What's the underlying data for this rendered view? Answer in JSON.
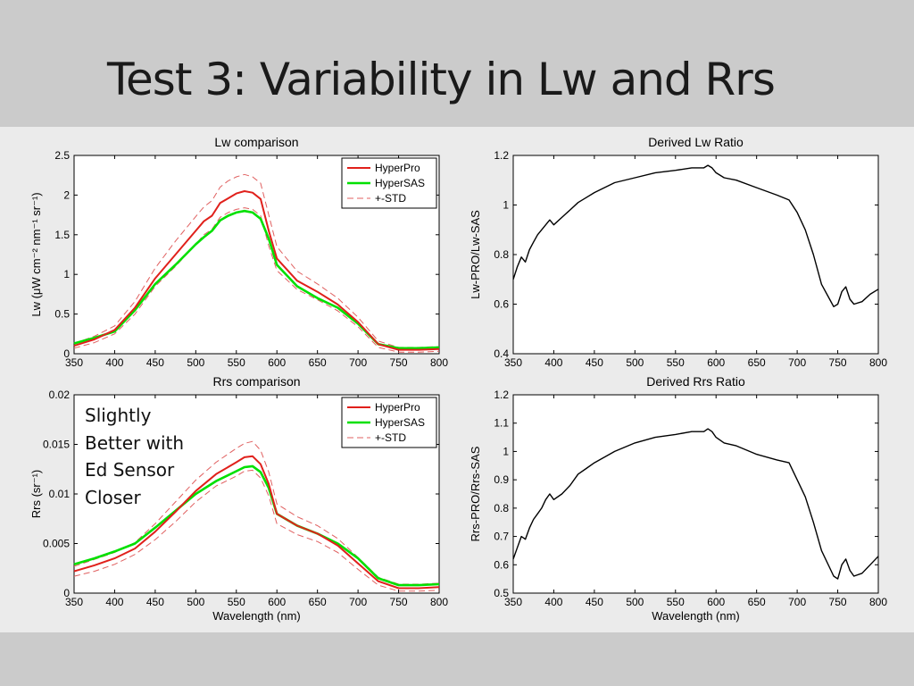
{
  "slide": {
    "title": "Test 3: Variability in Lw and Rrs",
    "note_lines": [
      "Slightly",
      "Better with",
      "Ed Sensor",
      "Closer"
    ]
  },
  "colors": {
    "hyperpro": "#e0201b",
    "hypersas": "#00e000",
    "std": "#e06060",
    "ratio": "#000000",
    "slide_bg": "#cbcbcb",
    "figure_bg": "#ebebeb"
  },
  "chart_data": [
    {
      "id": "lw",
      "type": "line",
      "title": "Lw comparison",
      "xlabel": "",
      "ylabel": "Lw (μW cm⁻² nm⁻¹ sr⁻¹)",
      "xlim": [
        350,
        800
      ],
      "ylim": [
        0,
        2.5
      ],
      "xticks": [
        "350",
        "400",
        "450",
        "500",
        "550",
        "600",
        "650",
        "700",
        "750",
        "800"
      ],
      "yticks": [
        "0",
        "0.5",
        "1",
        "1.5",
        "2",
        "2.5"
      ],
      "legend": {
        "position": "top-right",
        "entries": [
          "HyperPro",
          "HyperSAS",
          "+-STD"
        ]
      },
      "x": [
        350,
        375,
        400,
        425,
        450,
        475,
        500,
        510,
        520,
        530,
        540,
        550,
        560,
        570,
        580,
        590,
        600,
        625,
        650,
        675,
        700,
        725,
        750,
        775,
        800
      ],
      "series": [
        {
          "name": "HyperPro",
          "style": "solid",
          "color": "hyperpro",
          "values": [
            0.1,
            0.18,
            0.3,
            0.58,
            0.95,
            1.25,
            1.55,
            1.67,
            1.74,
            1.9,
            1.96,
            2.02,
            2.05,
            2.03,
            1.95,
            1.55,
            1.2,
            0.92,
            0.78,
            0.62,
            0.4,
            0.12,
            0.05,
            0.05,
            0.06
          ]
        },
        {
          "name": "HyperSAS",
          "style": "solid",
          "color": "hypersas",
          "values": [
            0.13,
            0.2,
            0.28,
            0.55,
            0.88,
            1.12,
            1.38,
            1.47,
            1.55,
            1.68,
            1.74,
            1.78,
            1.8,
            1.78,
            1.7,
            1.45,
            1.12,
            0.85,
            0.7,
            0.58,
            0.38,
            0.12,
            0.07,
            0.07,
            0.08
          ]
        },
        {
          "name": "+-STD upper",
          "style": "dashed",
          "color": "std",
          "values": [
            0.13,
            0.22,
            0.35,
            0.66,
            1.08,
            1.42,
            1.73,
            1.85,
            1.93,
            2.1,
            2.18,
            2.23,
            2.26,
            2.23,
            2.15,
            1.75,
            1.35,
            1.04,
            0.88,
            0.7,
            0.46,
            0.16,
            0.08,
            0.08,
            0.09
          ]
        },
        {
          "name": "+-STD lower",
          "style": "dashed",
          "color": "std",
          "values": [
            0.07,
            0.14,
            0.25,
            0.5,
            0.85,
            1.1,
            1.38,
            1.5,
            1.57,
            1.72,
            1.78,
            1.82,
            1.84,
            1.82,
            1.74,
            1.36,
            1.05,
            0.81,
            0.68,
            0.54,
            0.34,
            0.08,
            0.02,
            0.02,
            0.03
          ]
        }
      ]
    },
    {
      "id": "lw-ratio",
      "type": "line",
      "title": "Derived Lw Ratio",
      "xlabel": "",
      "ylabel": "Lw-PRO/Lw-SAS",
      "xlim": [
        350,
        800
      ],
      "ylim": [
        0.4,
        1.2
      ],
      "xticks": [
        "350",
        "400",
        "450",
        "500",
        "550",
        "600",
        "650",
        "700",
        "750",
        "800"
      ],
      "yticks": [
        "0.4",
        "0.6",
        "0.8",
        "1",
        "1.2"
      ],
      "x": [
        350,
        355,
        360,
        365,
        370,
        375,
        380,
        385,
        390,
        395,
        400,
        410,
        420,
        430,
        440,
        450,
        475,
        500,
        525,
        550,
        570,
        585,
        590,
        595,
        600,
        610,
        625,
        650,
        675,
        690,
        700,
        710,
        720,
        730,
        740,
        745,
        750,
        755,
        760,
        765,
        770,
        780,
        790,
        800
      ],
      "series": [
        {
          "name": "",
          "style": "solid",
          "color": "ratio",
          "values": [
            0.7,
            0.75,
            0.79,
            0.77,
            0.82,
            0.85,
            0.88,
            0.9,
            0.92,
            0.94,
            0.92,
            0.95,
            0.98,
            1.01,
            1.03,
            1.05,
            1.09,
            1.11,
            1.13,
            1.14,
            1.15,
            1.15,
            1.16,
            1.15,
            1.13,
            1.11,
            1.1,
            1.07,
            1.04,
            1.02,
            0.97,
            0.9,
            0.8,
            0.68,
            0.62,
            0.59,
            0.6,
            0.65,
            0.67,
            0.62,
            0.6,
            0.61,
            0.64,
            0.66
          ]
        }
      ]
    },
    {
      "id": "rrs",
      "type": "line",
      "title": "Rrs comparison",
      "xlabel": "Wavelength (nm)",
      "ylabel": "Rrs (sr⁻¹)",
      "xlim": [
        350,
        800
      ],
      "ylim": [
        0,
        0.02
      ],
      "xticks": [
        "350",
        "400",
        "450",
        "500",
        "550",
        "600",
        "650",
        "700",
        "750",
        "800"
      ],
      "yticks": [
        "0",
        "0.005",
        "0.01",
        "0.015",
        "0.02"
      ],
      "legend": {
        "position": "top-right",
        "entries": [
          "HyperPro",
          "HyperSAS",
          "+-STD"
        ]
      },
      "x": [
        350,
        375,
        400,
        425,
        450,
        475,
        500,
        525,
        550,
        560,
        570,
        580,
        590,
        600,
        625,
        650,
        675,
        700,
        725,
        750,
        775,
        800
      ],
      "series": [
        {
          "name": "HyperPro",
          "style": "solid",
          "color": "hyperpro",
          "values": [
            0.0022,
            0.0028,
            0.0035,
            0.0045,
            0.0062,
            0.0082,
            0.0103,
            0.012,
            0.0132,
            0.0137,
            0.0138,
            0.013,
            0.011,
            0.008,
            0.0068,
            0.006,
            0.0048,
            0.003,
            0.0012,
            0.0005,
            0.0005,
            0.0006
          ]
        },
        {
          "name": "HyperSAS",
          "style": "solid",
          "color": "hypersas",
          "values": [
            0.0029,
            0.0035,
            0.0042,
            0.005,
            0.0066,
            0.0083,
            0.01,
            0.0113,
            0.0123,
            0.0127,
            0.0128,
            0.0122,
            0.0106,
            0.008,
            0.0068,
            0.006,
            0.005,
            0.0035,
            0.0015,
            0.0008,
            0.0008,
            0.0009
          ]
        },
        {
          "name": "+-STD upper",
          "style": "dashed",
          "color": "std",
          "values": [
            0.0027,
            0.0034,
            0.0041,
            0.0051,
            0.007,
            0.0092,
            0.0114,
            0.0132,
            0.0146,
            0.0151,
            0.0153,
            0.0144,
            0.0122,
            0.009,
            0.0077,
            0.0068,
            0.0055,
            0.0036,
            0.0016,
            0.0009,
            0.0009,
            0.001
          ]
        },
        {
          "name": "+-STD lower",
          "style": "dashed",
          "color": "std",
          "values": [
            0.0017,
            0.0022,
            0.0029,
            0.0039,
            0.0054,
            0.0072,
            0.0092,
            0.0108,
            0.0118,
            0.0123,
            0.0124,
            0.0116,
            0.0098,
            0.007,
            0.0059,
            0.0052,
            0.0041,
            0.0024,
            0.0008,
            0.0002,
            0.0002,
            0.0003
          ]
        }
      ]
    },
    {
      "id": "rrs-ratio",
      "type": "line",
      "title": "Derived Rrs Ratio",
      "xlabel": "Wavelength (nm)",
      "ylabel": "Rrs-PRO/Rrs-SAS",
      "xlim": [
        350,
        800
      ],
      "ylim": [
        0.5,
        1.2
      ],
      "xticks": [
        "350",
        "400",
        "450",
        "500",
        "550",
        "600",
        "650",
        "700",
        "750",
        "800"
      ],
      "yticks": [
        "0.5",
        "0.6",
        "0.7",
        "0.8",
        "0.9",
        "1",
        "1.1",
        "1.2"
      ],
      "x": [
        350,
        355,
        360,
        365,
        370,
        375,
        380,
        385,
        390,
        395,
        400,
        410,
        420,
        430,
        440,
        450,
        475,
        500,
        525,
        550,
        570,
        585,
        590,
        595,
        600,
        610,
        625,
        650,
        675,
        690,
        700,
        710,
        720,
        730,
        740,
        745,
        750,
        755,
        760,
        765,
        770,
        780,
        790,
        800
      ],
      "series": [
        {
          "name": "",
          "style": "solid",
          "color": "ratio",
          "values": [
            0.62,
            0.66,
            0.7,
            0.69,
            0.73,
            0.76,
            0.78,
            0.8,
            0.83,
            0.85,
            0.83,
            0.85,
            0.88,
            0.92,
            0.94,
            0.96,
            1.0,
            1.03,
            1.05,
            1.06,
            1.07,
            1.07,
            1.08,
            1.07,
            1.05,
            1.03,
            1.02,
            0.99,
            0.97,
            0.96,
            0.9,
            0.84,
            0.75,
            0.65,
            0.59,
            0.56,
            0.55,
            0.6,
            0.62,
            0.58,
            0.56,
            0.57,
            0.6,
            0.63
          ]
        }
      ]
    }
  ]
}
